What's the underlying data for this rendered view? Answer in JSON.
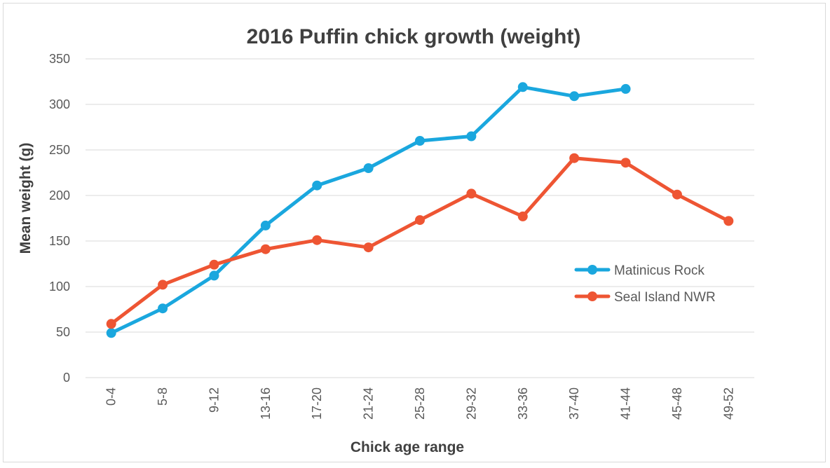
{
  "chart_data": {
    "type": "line",
    "title": "2016 Puffin chick growth (weight)",
    "xlabel": "Chick age range",
    "ylabel": "Mean weight (g)",
    "categories": [
      "0-4",
      "5-8",
      "9-12",
      "13-16",
      "17-20",
      "21-24",
      "25-28",
      "29-32",
      "33-36",
      "37-40",
      "41-44",
      "45-48",
      "49-52"
    ],
    "ylim": [
      0,
      350
    ],
    "yticks": [
      0,
      50,
      100,
      150,
      200,
      250,
      300,
      350
    ],
    "grid": true,
    "legend_position": "right",
    "series": [
      {
        "name": "Matinicus Rock",
        "color": "#1aa7de",
        "values": [
          49,
          76,
          112,
          167,
          211,
          230,
          260,
          265,
          319,
          309,
          317,
          null,
          null
        ]
      },
      {
        "name": "Seal Island NWR",
        "color": "#ee5533",
        "values": [
          59,
          102,
          124,
          141,
          151,
          143,
          173,
          202,
          177,
          241,
          236,
          201,
          172
        ]
      }
    ]
  }
}
